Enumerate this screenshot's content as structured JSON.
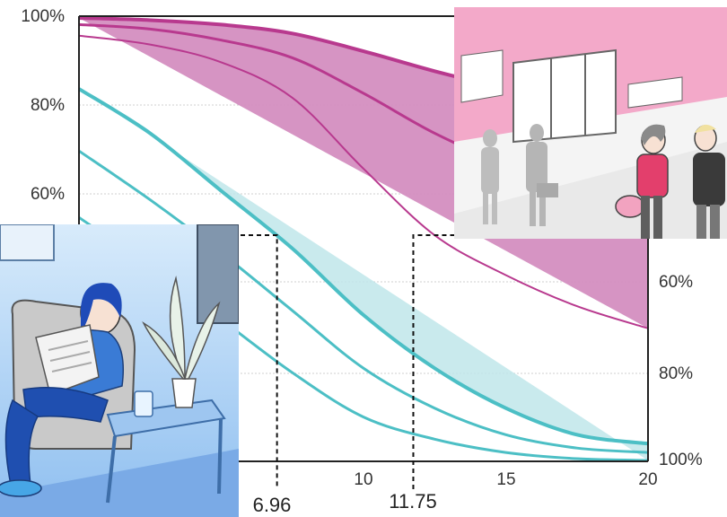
{
  "chart_data": {
    "type": "area",
    "title": "",
    "xlabel": "",
    "ylabel": "",
    "xlim": [
      0,
      20
    ],
    "left_axis": {
      "ticks": [
        "100%",
        "80%",
        "60%"
      ]
    },
    "right_axis": {
      "ticks": [
        "60%",
        "80%",
        "100%"
      ]
    },
    "x_ticks": [
      10,
      15,
      20
    ],
    "markers": [
      {
        "x": 6.96,
        "label": "6.96"
      },
      {
        "x": 11.75,
        "label": "11.75"
      }
    ],
    "series": [
      {
        "band": "pink",
        "upper": {
          "x": [
            0,
            2.5,
            5,
            7.5,
            10,
            12.5,
            15,
            17.5,
            20
          ],
          "y": [
            100,
            99.5,
            98.5,
            96.5,
            92.5,
            88,
            84,
            80,
            77
          ]
        },
        "middle": {
          "x": [
            0,
            2.5,
            5,
            7.5,
            10,
            12.5,
            15,
            17.5,
            20
          ],
          "y": [
            98.5,
            97.5,
            95,
            91,
            83,
            74,
            67,
            62,
            57
          ]
        },
        "lower": {
          "x": [
            0,
            2.5,
            5,
            7.5,
            10,
            12.5,
            15,
            17.5,
            20
          ],
          "y": [
            96,
            94,
            90,
            82,
            66,
            51,
            42,
            35,
            30
          ]
        }
      },
      {
        "band": "teal",
        "upper": {
          "x": [
            0,
            2.5,
            5,
            7.5,
            10,
            12.5,
            15,
            17.5,
            20
          ],
          "y": [
            84,
            74,
            61,
            48,
            33,
            21,
            12,
            6,
            4
          ]
        },
        "middle": {
          "x": [
            0,
            2.5,
            5,
            7.5,
            10,
            12.5,
            15,
            17.5,
            20
          ],
          "y": [
            70,
            59,
            47,
            34,
            21,
            12,
            6,
            3,
            2
          ]
        },
        "lower": {
          "x": [
            0,
            2.5,
            5,
            7.5,
            10,
            12.5,
            15,
            17.5,
            20
          ],
          "y": [
            55,
            44,
            32,
            20,
            10,
            5,
            2,
            0.6,
            0.2
          ]
        }
      }
    ],
    "colors": {
      "pink_fill": "#d48ec0",
      "pink_line": "#b8398e",
      "teal_fill": "#bfe6ea",
      "teal_line": "#4cbfc5",
      "axis": "#222222"
    }
  },
  "illustrations": [
    {
      "name": "street-scene-panel",
      "accent": "#f3a9c9"
    },
    {
      "name": "reading-woman-panel",
      "accent": "#2f6fd6"
    }
  ]
}
